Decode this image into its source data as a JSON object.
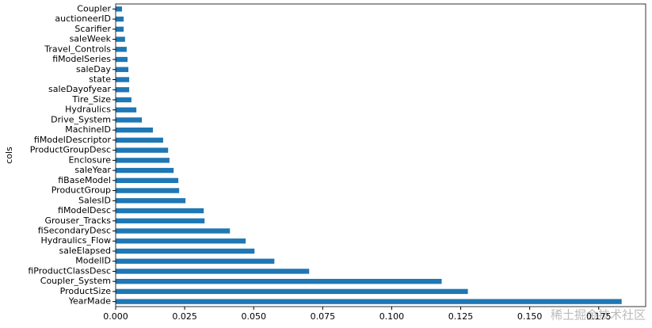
{
  "chart_data": {
    "type": "barh",
    "ylabel": "cols",
    "color": "#1f77b4",
    "categories": [
      "YearMade",
      "ProductSize",
      "Coupler_System",
      "fiProductClassDesc",
      "ModelID",
      "saleElapsed",
      "Hydraulics_Flow",
      "fiSecondaryDesc",
      "Grouser_Tracks",
      "fiModelDesc",
      "SalesID",
      "ProductGroup",
      "fiBaseModel",
      "saleYear",
      "Enclosure",
      "ProductGroupDesc",
      "fiModelDescriptor",
      "MachineID",
      "Drive_System",
      "Hydraulics",
      "Tire_Size",
      "saleDayofyear",
      "state",
      "saleDay",
      "fiModelSeries",
      "Travel_Controls",
      "saleWeek",
      "Scarifier",
      "auctioneerID",
      "Coupler"
    ],
    "values": [
      0.1833,
      0.1276,
      0.1181,
      0.0701,
      0.0575,
      0.0503,
      0.0471,
      0.0414,
      0.0322,
      0.0319,
      0.0253,
      0.023,
      0.0227,
      0.021,
      0.0195,
      0.019,
      0.0172,
      0.0135,
      0.0095,
      0.0075,
      0.0057,
      0.0049,
      0.0049,
      0.0046,
      0.0043,
      0.004,
      0.0034,
      0.0029,
      0.0029,
      0.0023
    ],
    "xlim": [
      0,
      0.192
    ],
    "xticks": [
      {
        "value": 0,
        "label": "0.000"
      },
      {
        "value": 0.025,
        "label": "0.025"
      },
      {
        "value": 0.05,
        "label": "0.050"
      },
      {
        "value": 0.075,
        "label": "0.075"
      },
      {
        "value": 0.1,
        "label": "0.100"
      },
      {
        "value": 0.125,
        "label": "0.125"
      },
      {
        "value": 0.15,
        "label": "0.150"
      },
      {
        "value": 0.175,
        "label": "0.175"
      }
    ],
    "watermark": "稀土掘金技术社区"
  }
}
